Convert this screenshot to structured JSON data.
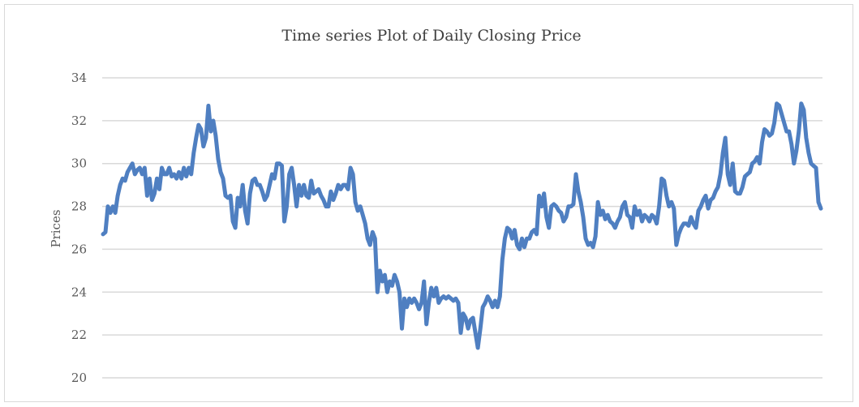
{
  "chart_data": {
    "type": "line",
    "title": "Time series Plot of Daily Closing Price",
    "xlabel": "",
    "ylabel": "Prices",
    "ylim": [
      20,
      34
    ],
    "yticks": [
      20,
      22,
      24,
      26,
      28,
      30,
      32,
      34
    ],
    "grid": true,
    "legend": "none",
    "series_color": "#4f7fc1",
    "series": [
      {
        "values": [
          26.7,
          26.8,
          28.0,
          27.7,
          28.0,
          27.7,
          28.5,
          29.0,
          29.3,
          29.2,
          29.6,
          29.8,
          30.0,
          29.5,
          29.7,
          29.8,
          29.5,
          29.8,
          28.5,
          29.3,
          28.3,
          28.6,
          29.3,
          28.8,
          29.8,
          29.5,
          29.5,
          29.8,
          29.4,
          29.5,
          29.3,
          29.6,
          29.3,
          29.8,
          29.4,
          29.8,
          29.5,
          30.5,
          31.2,
          31.8,
          31.6,
          30.8,
          31.2,
          32.7,
          31.5,
          32.0,
          31.3,
          30.2,
          29.6,
          29.3,
          28.5,
          28.4,
          28.5,
          27.3,
          27.0,
          28.4,
          28.0,
          29.0,
          27.8,
          27.2,
          28.6,
          29.2,
          29.3,
          29.0,
          29.0,
          28.7,
          28.3,
          28.5,
          29.0,
          29.5,
          29.3,
          30.0,
          30.0,
          29.9,
          27.3,
          28.0,
          29.5,
          29.8,
          29.0,
          28.0,
          29.0,
          28.5,
          29.0,
          28.5,
          28.4,
          29.2,
          28.6,
          28.7,
          28.8,
          28.5,
          28.3,
          28.0,
          28.0,
          28.7,
          28.3,
          28.6,
          29.0,
          28.8,
          29.0,
          29.0,
          28.8,
          29.8,
          29.5,
          28.2,
          27.8,
          28.0,
          27.6,
          27.2,
          26.5,
          26.2,
          26.8,
          26.5,
          24.0,
          25.0,
          24.5,
          24.8,
          24.0,
          24.5,
          24.3,
          24.8,
          24.5,
          24.0,
          22.3,
          23.7,
          23.3,
          23.7,
          23.5,
          23.7,
          23.5,
          23.2,
          23.5,
          24.5,
          22.5,
          23.5,
          24.2,
          23.8,
          24.2,
          23.5,
          23.7,
          23.8,
          23.7,
          23.8,
          23.7,
          23.6,
          23.7,
          23.5,
          22.1,
          23.0,
          22.8,
          22.3,
          22.7,
          22.8,
          22.1,
          21.4,
          22.3,
          23.3,
          23.5,
          23.8,
          23.6,
          23.3,
          23.6,
          23.3,
          23.8,
          25.5,
          26.5,
          27.0,
          26.9,
          26.5,
          26.9,
          26.2,
          26.0,
          26.5,
          26.1,
          26.5,
          26.5,
          26.8,
          26.9,
          26.7,
          28.5,
          28.0,
          28.6,
          27.5,
          27.0,
          28.0,
          28.1,
          28.0,
          27.8,
          27.7,
          27.3,
          27.5,
          28.0,
          28.0,
          28.1,
          29.5,
          28.7,
          28.2,
          27.5,
          26.5,
          26.2,
          26.3,
          26.1,
          26.6,
          28.2,
          27.6,
          27.8,
          27.4,
          27.6,
          27.3,
          27.2,
          27.0,
          27.3,
          27.5,
          28.0,
          28.2,
          27.6,
          27.5,
          27.0,
          28.0,
          27.6,
          27.8,
          27.3,
          27.6,
          27.5,
          27.3,
          27.6,
          27.5,
          27.2,
          28.0,
          29.3,
          29.2,
          28.5,
          28.0,
          28.2,
          27.9,
          26.2,
          26.7,
          27.0,
          27.2,
          27.2,
          27.1,
          27.5,
          27.2,
          27.0,
          27.8,
          28.0,
          28.3,
          28.5,
          27.9,
          28.3,
          28.4,
          28.7,
          28.9,
          29.5,
          30.5,
          31.2,
          29.5,
          29.0,
          30.0,
          28.7,
          28.6,
          28.6,
          28.9,
          29.4,
          29.5,
          29.6,
          30.0,
          30.1,
          30.3,
          30.0,
          31.0,
          31.6,
          31.5,
          31.3,
          31.4,
          31.9,
          32.8,
          32.7,
          32.3,
          31.9,
          31.5,
          31.5,
          30.9,
          30.0,
          30.6,
          31.5,
          32.8,
          32.5,
          31.2,
          30.5,
          30.0,
          29.9,
          29.8,
          28.2,
          27.9
        ]
      }
    ]
  }
}
